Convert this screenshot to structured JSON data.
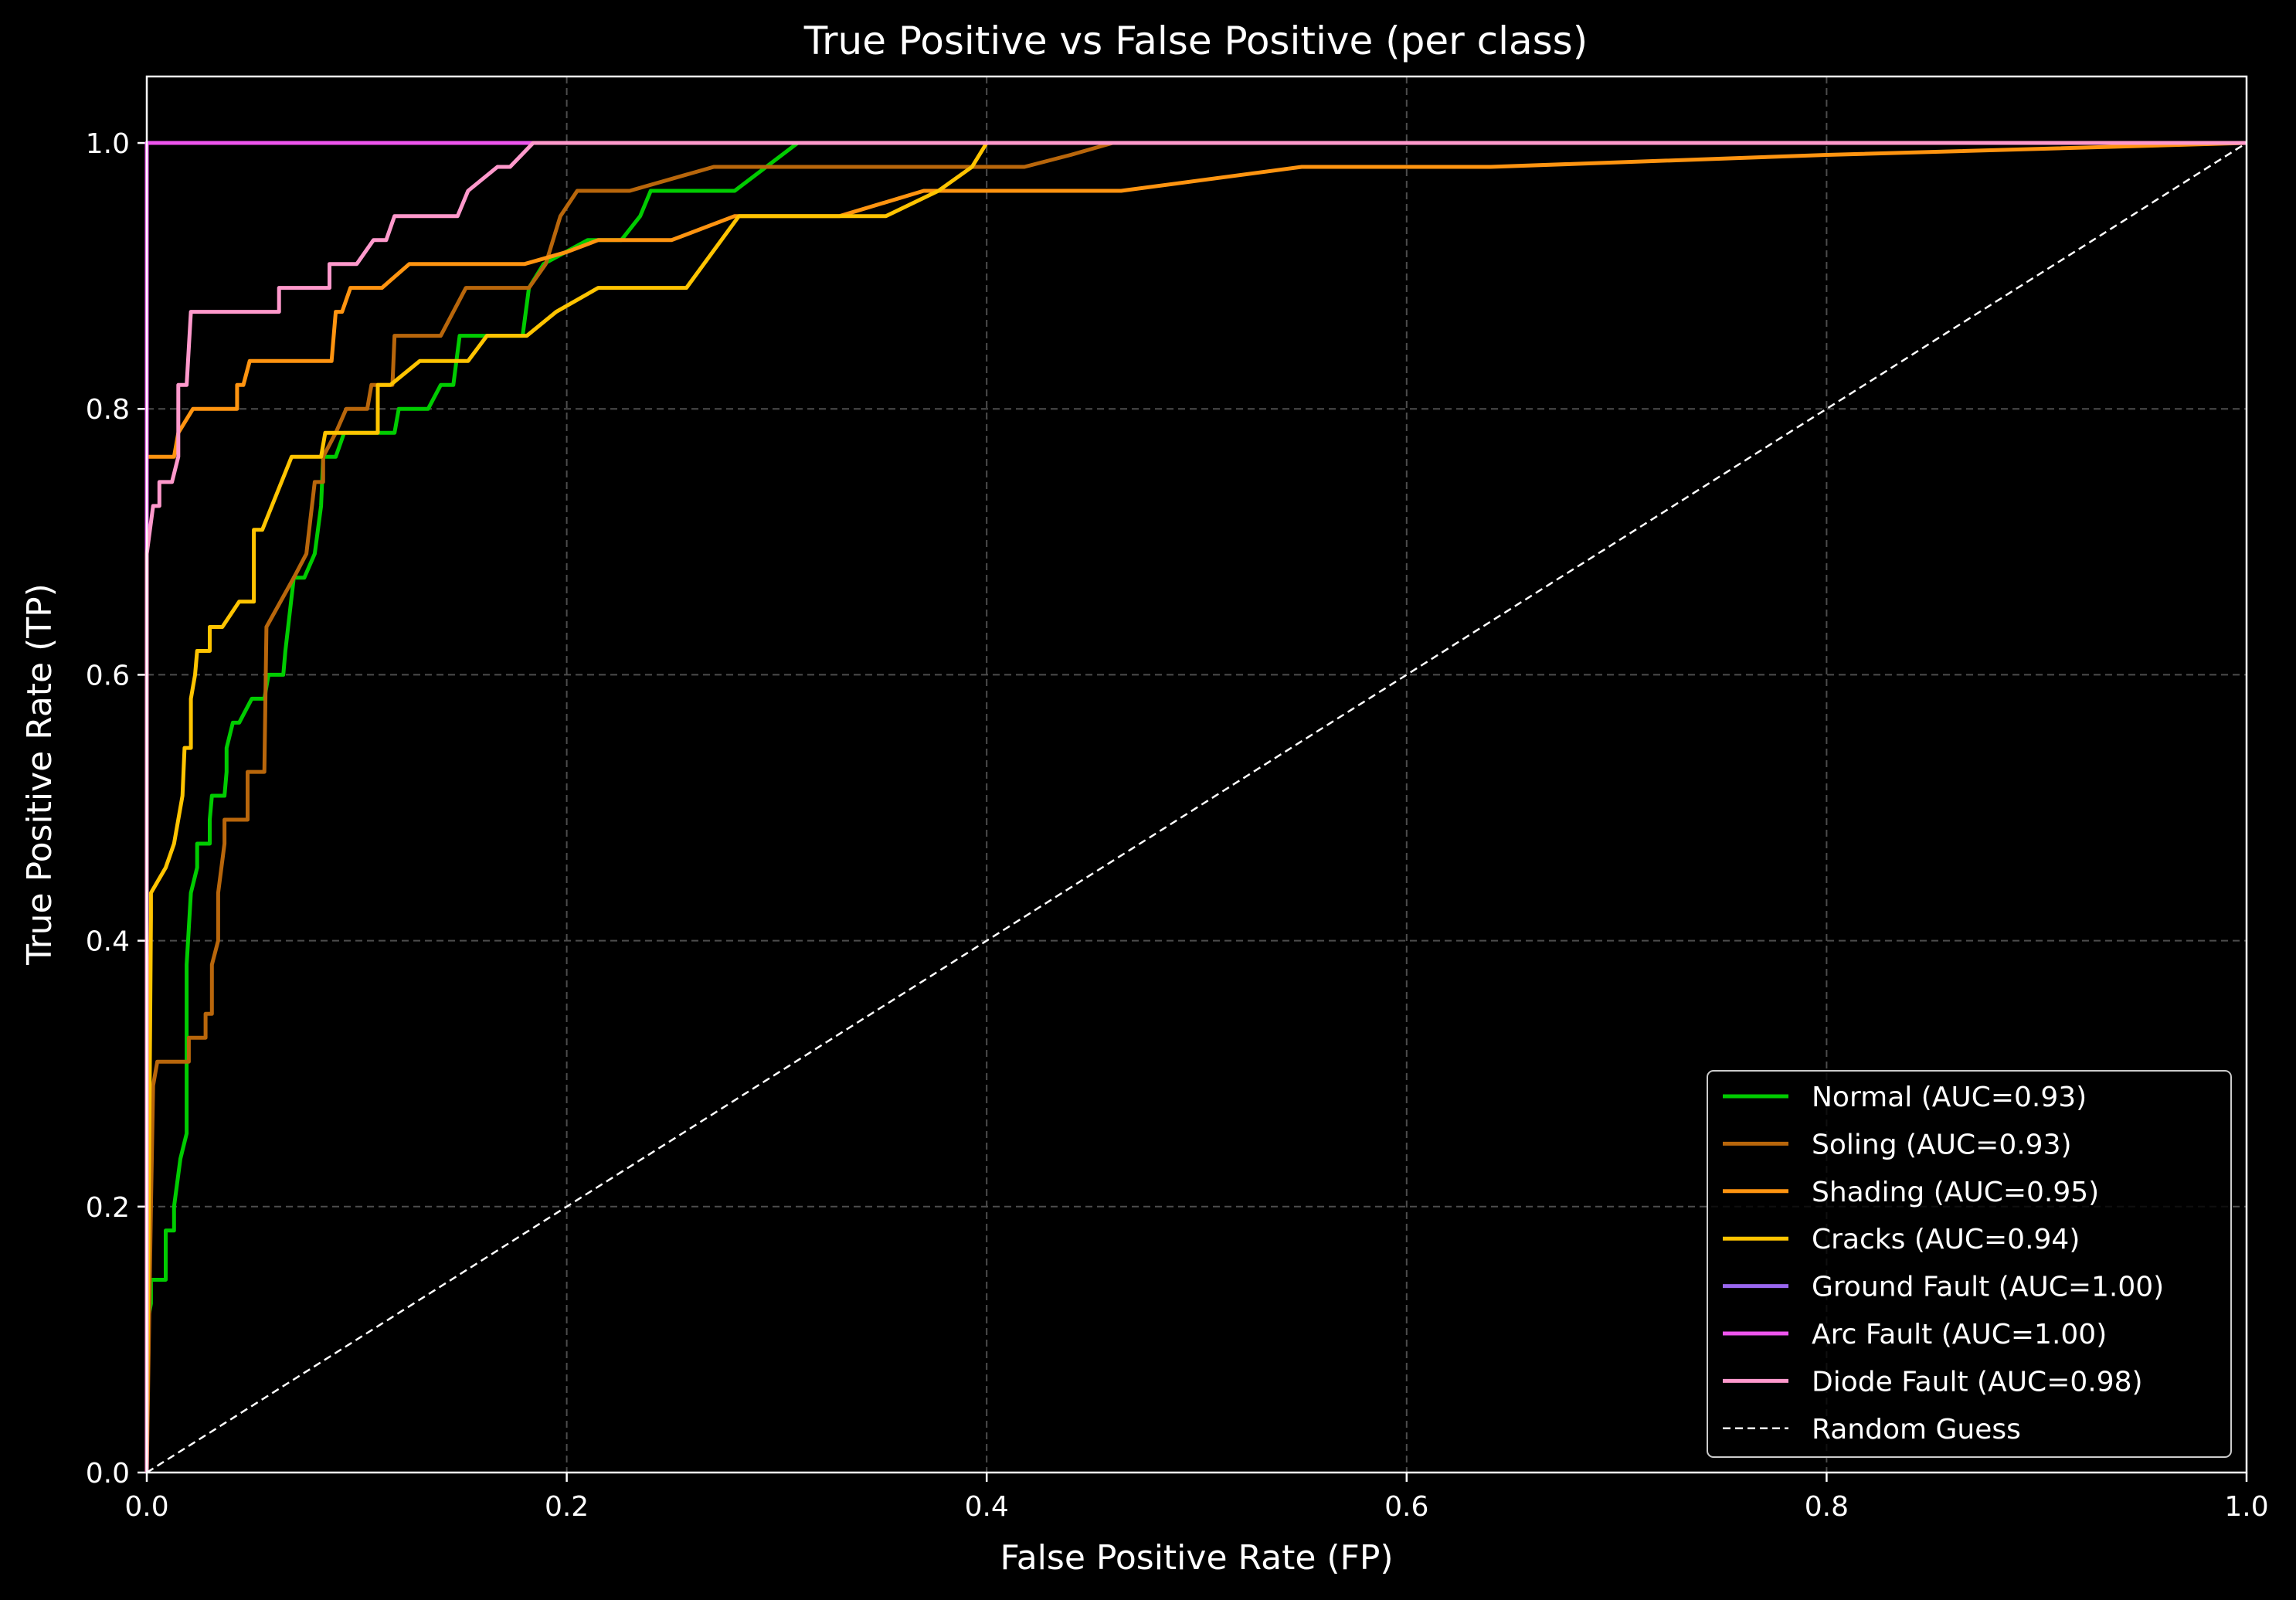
{
  "chart_data": {
    "type": "line",
    "title": "True Positive vs False Positive (per class)",
    "xlabel": "False Positive Rate (FP)",
    "ylabel": "True Positive Rate (TP)",
    "xlim": [
      0.0,
      1.0
    ],
    "ylim": [
      0.0,
      1.05
    ],
    "grid": true,
    "legend_position": "bottom-right",
    "x_ticks": [
      {
        "value": 0.0,
        "label": "0.0"
      },
      {
        "value": 0.2,
        "label": "0.2"
      },
      {
        "value": 0.4,
        "label": "0.4"
      },
      {
        "value": 0.6,
        "label": "0.6"
      },
      {
        "value": 0.8,
        "label": "0.8"
      },
      {
        "value": 1.0,
        "label": "1.0"
      }
    ],
    "y_ticks": [
      {
        "value": 0.0,
        "label": "0.0"
      },
      {
        "value": 0.2,
        "label": "0.2"
      },
      {
        "value": 0.4,
        "label": "0.4"
      },
      {
        "value": 0.6,
        "label": "0.6"
      },
      {
        "value": 0.8,
        "label": "0.8"
      },
      {
        "value": 1.0,
        "label": "1.0"
      }
    ],
    "series": [
      {
        "name": "Normal (AUC=0.93)",
        "color": "#00cc00",
        "dashed": false,
        "points": [
          [
            0,
            0
          ],
          [
            0,
            0.11
          ],
          [
            0.002,
            0.127
          ],
          [
            0.002,
            0.145
          ],
          [
            0.009,
            0.145
          ],
          [
            0.009,
            0.182
          ],
          [
            0.013,
            0.182
          ],
          [
            0.013,
            0.2
          ],
          [
            0.016,
            0.236
          ],
          [
            0.019,
            0.255
          ],
          [
            0.019,
            0.382
          ],
          [
            0.021,
            0.436
          ],
          [
            0.024,
            0.455
          ],
          [
            0.024,
            0.473
          ],
          [
            0.03,
            0.473
          ],
          [
            0.03,
            0.491
          ],
          [
            0.031,
            0.509
          ],
          [
            0.037,
            0.509
          ],
          [
            0.038,
            0.527
          ],
          [
            0.038,
            0.545
          ],
          [
            0.041,
            0.564
          ],
          [
            0.044,
            0.564
          ],
          [
            0.05,
            0.582
          ],
          [
            0.056,
            0.582
          ],
          [
            0.058,
            0.6
          ],
          [
            0.065,
            0.6
          ],
          [
            0.066,
            0.618
          ],
          [
            0.07,
            0.673
          ],
          [
            0.075,
            0.673
          ],
          [
            0.08,
            0.691
          ],
          [
            0.083,
            0.727
          ],
          [
            0.084,
            0.764
          ],
          [
            0.09,
            0.764
          ],
          [
            0.094,
            0.782
          ],
          [
            0.118,
            0.782
          ],
          [
            0.12,
            0.8
          ],
          [
            0.134,
            0.8
          ],
          [
            0.14,
            0.818
          ],
          [
            0.146,
            0.818
          ],
          [
            0.149,
            0.855
          ],
          [
            0.155,
            0.855
          ],
          [
            0.179,
            0.855
          ],
          [
            0.182,
            0.891
          ],
          [
            0.189,
            0.909
          ],
          [
            0.21,
            0.927
          ],
          [
            0.226,
            0.927
          ],
          [
            0.235,
            0.945
          ],
          [
            0.24,
            0.964
          ],
          [
            0.248,
            0.964
          ],
          [
            0.28,
            0.964
          ],
          [
            0.295,
            0.982
          ],
          [
            0.31,
            1.0
          ],
          [
            1.0,
            1.0
          ]
        ]
      },
      {
        "name": "Soling (AUC=0.93)",
        "color": "#b8660b",
        "dashed": false,
        "points": [
          [
            0,
            0
          ],
          [
            0.002,
            0.2
          ],
          [
            0.003,
            0.291
          ],
          [
            0.005,
            0.309
          ],
          [
            0.02,
            0.309
          ],
          [
            0.02,
            0.327
          ],
          [
            0.028,
            0.327
          ],
          [
            0.028,
            0.345
          ],
          [
            0.031,
            0.345
          ],
          [
            0.031,
            0.382
          ],
          [
            0.034,
            0.4
          ],
          [
            0.034,
            0.436
          ],
          [
            0.037,
            0.473
          ],
          [
            0.037,
            0.491
          ],
          [
            0.048,
            0.491
          ],
          [
            0.048,
            0.527
          ],
          [
            0.056,
            0.527
          ],
          [
            0.057,
            0.636
          ],
          [
            0.07,
            0.673
          ],
          [
            0.076,
            0.691
          ],
          [
            0.08,
            0.745
          ],
          [
            0.084,
            0.745
          ],
          [
            0.084,
            0.764
          ],
          [
            0.09,
            0.782
          ],
          [
            0.095,
            0.8
          ],
          [
            0.105,
            0.8
          ],
          [
            0.107,
            0.818
          ],
          [
            0.117,
            0.818
          ],
          [
            0.118,
            0.855
          ],
          [
            0.14,
            0.855
          ],
          [
            0.152,
            0.891
          ],
          [
            0.182,
            0.891
          ],
          [
            0.19,
            0.909
          ],
          [
            0.197,
            0.945
          ],
          [
            0.205,
            0.964
          ],
          [
            0.23,
            0.964
          ],
          [
            0.27,
            0.982
          ],
          [
            0.418,
            0.982
          ],
          [
            0.44,
            0.991
          ],
          [
            0.46,
            1.0
          ],
          [
            1.0,
            1.0
          ]
        ]
      },
      {
        "name": "Shading (AUC=0.95)",
        "color": "#ff9410",
        "dashed": false,
        "points": [
          [
            0,
            0
          ],
          [
            0,
            0.764
          ],
          [
            0.013,
            0.764
          ],
          [
            0.015,
            0.782
          ],
          [
            0.022,
            0.8
          ],
          [
            0.043,
            0.8
          ],
          [
            0.043,
            0.818
          ],
          [
            0.046,
            0.818
          ],
          [
            0.049,
            0.836
          ],
          [
            0.088,
            0.836
          ],
          [
            0.09,
            0.873
          ],
          [
            0.093,
            0.873
          ],
          [
            0.097,
            0.891
          ],
          [
            0.112,
            0.891
          ],
          [
            0.125,
            0.909
          ],
          [
            0.18,
            0.909
          ],
          [
            0.2,
            0.918
          ],
          [
            0.215,
            0.927
          ],
          [
            0.25,
            0.927
          ],
          [
            0.28,
            0.945
          ],
          [
            0.33,
            0.945
          ],
          [
            0.37,
            0.964
          ],
          [
            0.464,
            0.964
          ],
          [
            0.55,
            0.982
          ],
          [
            0.64,
            0.982
          ],
          [
            0.8,
            0.991
          ],
          [
            1.0,
            1.0
          ]
        ]
      },
      {
        "name": "Cracks (AUC=0.94)",
        "color": "#ffc400",
        "dashed": false,
        "points": [
          [
            0,
            0
          ],
          [
            0.002,
            0.418
          ],
          [
            0.002,
            0.436
          ],
          [
            0.009,
            0.455
          ],
          [
            0.013,
            0.473
          ],
          [
            0.017,
            0.509
          ],
          [
            0.018,
            0.545
          ],
          [
            0.021,
            0.545
          ],
          [
            0.021,
            0.582
          ],
          [
            0.023,
            0.6
          ],
          [
            0.024,
            0.618
          ],
          [
            0.028,
            0.618
          ],
          [
            0.03,
            0.618
          ],
          [
            0.03,
            0.636
          ],
          [
            0.036,
            0.636
          ],
          [
            0.044,
            0.655
          ],
          [
            0.051,
            0.655
          ],
          [
            0.051,
            0.709
          ],
          [
            0.055,
            0.709
          ],
          [
            0.069,
            0.764
          ],
          [
            0.083,
            0.764
          ],
          [
            0.085,
            0.782
          ],
          [
            0.11,
            0.782
          ],
          [
            0.11,
            0.818
          ],
          [
            0.116,
            0.818
          ],
          [
            0.13,
            0.836
          ],
          [
            0.153,
            0.836
          ],
          [
            0.162,
            0.855
          ],
          [
            0.181,
            0.855
          ],
          [
            0.195,
            0.873
          ],
          [
            0.215,
            0.891
          ],
          [
            0.257,
            0.891
          ],
          [
            0.282,
            0.945
          ],
          [
            0.352,
            0.945
          ],
          [
            0.377,
            0.964
          ],
          [
            0.393,
            0.982
          ],
          [
            0.4,
            1.0
          ],
          [
            1.0,
            1.0
          ]
        ]
      },
      {
        "name": "Ground Fault (AUC=1.00)",
        "color": "#9966ee",
        "dashed": false,
        "points": [
          [
            0,
            0
          ],
          [
            0,
            1.0
          ],
          [
            1.0,
            1.0
          ]
        ]
      },
      {
        "name": "Arc Fault (AUC=1.00)",
        "color": "#ee55ee",
        "dashed": false,
        "points": [
          [
            0,
            0
          ],
          [
            0,
            1.0
          ],
          [
            1.0,
            1.0
          ]
        ]
      },
      {
        "name": "Diode Fault (AUC=0.98)",
        "color": "#ff99cc",
        "dashed": false,
        "points": [
          [
            0,
            0
          ],
          [
            0,
            0.691
          ],
          [
            0.003,
            0.727
          ],
          [
            0.006,
            0.727
          ],
          [
            0.006,
            0.745
          ],
          [
            0.012,
            0.745
          ],
          [
            0.015,
            0.764
          ],
          [
            0.015,
            0.818
          ],
          [
            0.019,
            0.818
          ],
          [
            0.021,
            0.873
          ],
          [
            0.063,
            0.873
          ],
          [
            0.063,
            0.891
          ],
          [
            0.087,
            0.891
          ],
          [
            0.087,
            0.909
          ],
          [
            0.1,
            0.909
          ],
          [
            0.108,
            0.927
          ],
          [
            0.114,
            0.927
          ],
          [
            0.118,
            0.945
          ],
          [
            0.148,
            0.945
          ],
          [
            0.153,
            0.964
          ],
          [
            0.167,
            0.982
          ],
          [
            0.173,
            0.982
          ],
          [
            0.184,
            1.0
          ],
          [
            1.0,
            1.0
          ]
        ]
      },
      {
        "name": "Random Guess",
        "color": "#ffffff",
        "dashed": true,
        "points": [
          [
            0,
            0
          ],
          [
            1.0,
            1.0
          ]
        ]
      }
    ]
  }
}
